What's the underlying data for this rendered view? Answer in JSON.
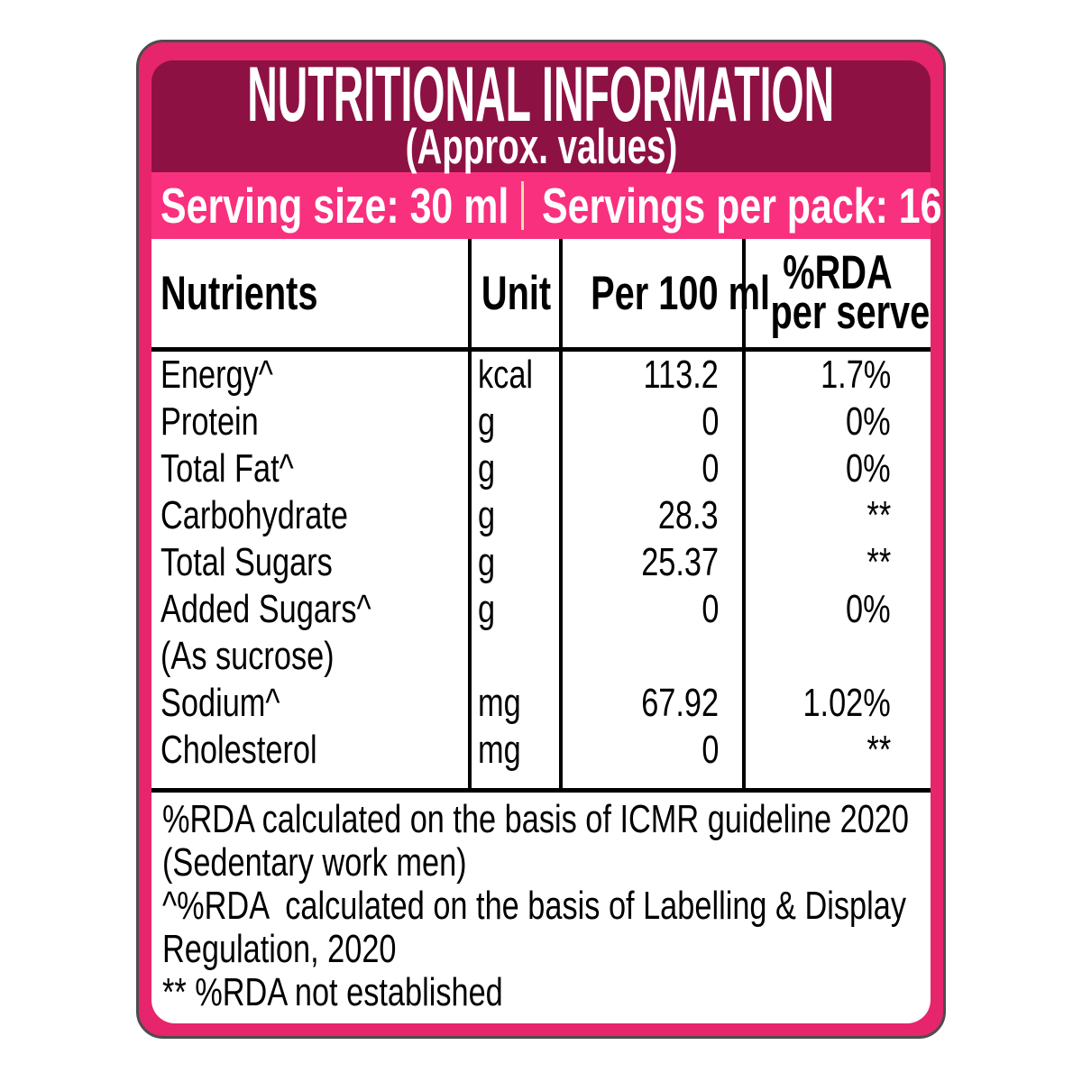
{
  "colors": {
    "frame_pink": "#e6256c",
    "frame_outline": "#4d4d4d",
    "header_maroon": "#8e1144",
    "serving_bar_pink": "#f9307e",
    "serving_divider_cream": "#f2ddb2",
    "panel_white": "#ffffff",
    "text_black": "#000000",
    "text_white": "#ffffff"
  },
  "header": {
    "title": "NUTRITIONAL INFORMATION",
    "subtitle": "(Approx. values)"
  },
  "serving_bar": {
    "serving_size": "Serving size: 30 ml",
    "servings_per_pack": "Servings per pack: 16"
  },
  "table": {
    "columns": {
      "nutrients": "Nutrients",
      "unit": "Unit",
      "per_100ml": "Per 100 ml",
      "rda_line1": "%RDA",
      "rda_line2": "per serve"
    },
    "rows": [
      {
        "nutrient": "Energy^",
        "unit": "kcal",
        "per100": "113.2",
        "rda": "1.7%"
      },
      {
        "nutrient": "Protein",
        "unit": "g",
        "per100": "0",
        "rda": "0%"
      },
      {
        "nutrient": "Total Fat^",
        "unit": "g",
        "per100": "0",
        "rda": "0%"
      },
      {
        "nutrient": "Carbohydrate",
        "unit": "g",
        "per100": "28.3",
        "rda": "**"
      },
      {
        "nutrient": "Total Sugars",
        "unit": "g",
        "per100": "25.37",
        "rda": "**"
      },
      {
        "nutrient": "Added Sugars^",
        "unit": "g",
        "per100": "0",
        "rda": "0%"
      },
      {
        "nutrient": "(As sucrose)",
        "unit": "",
        "per100": "",
        "rda": ""
      },
      {
        "nutrient": "Sodium^",
        "unit": "mg",
        "per100": "67.92",
        "rda": "1.02%"
      },
      {
        "nutrient": "Cholesterol",
        "unit": "mg",
        "per100": "0",
        "rda": "**"
      }
    ]
  },
  "footnotes": {
    "lines": [
      "%RDA calculated on the basis of ICMR guideline 2020",
      "(Sedentary work men)",
      "^%RDA  calculated on the basis of Labelling & Display",
      "Regulation, 2020",
      "** %RDA not established"
    ]
  }
}
